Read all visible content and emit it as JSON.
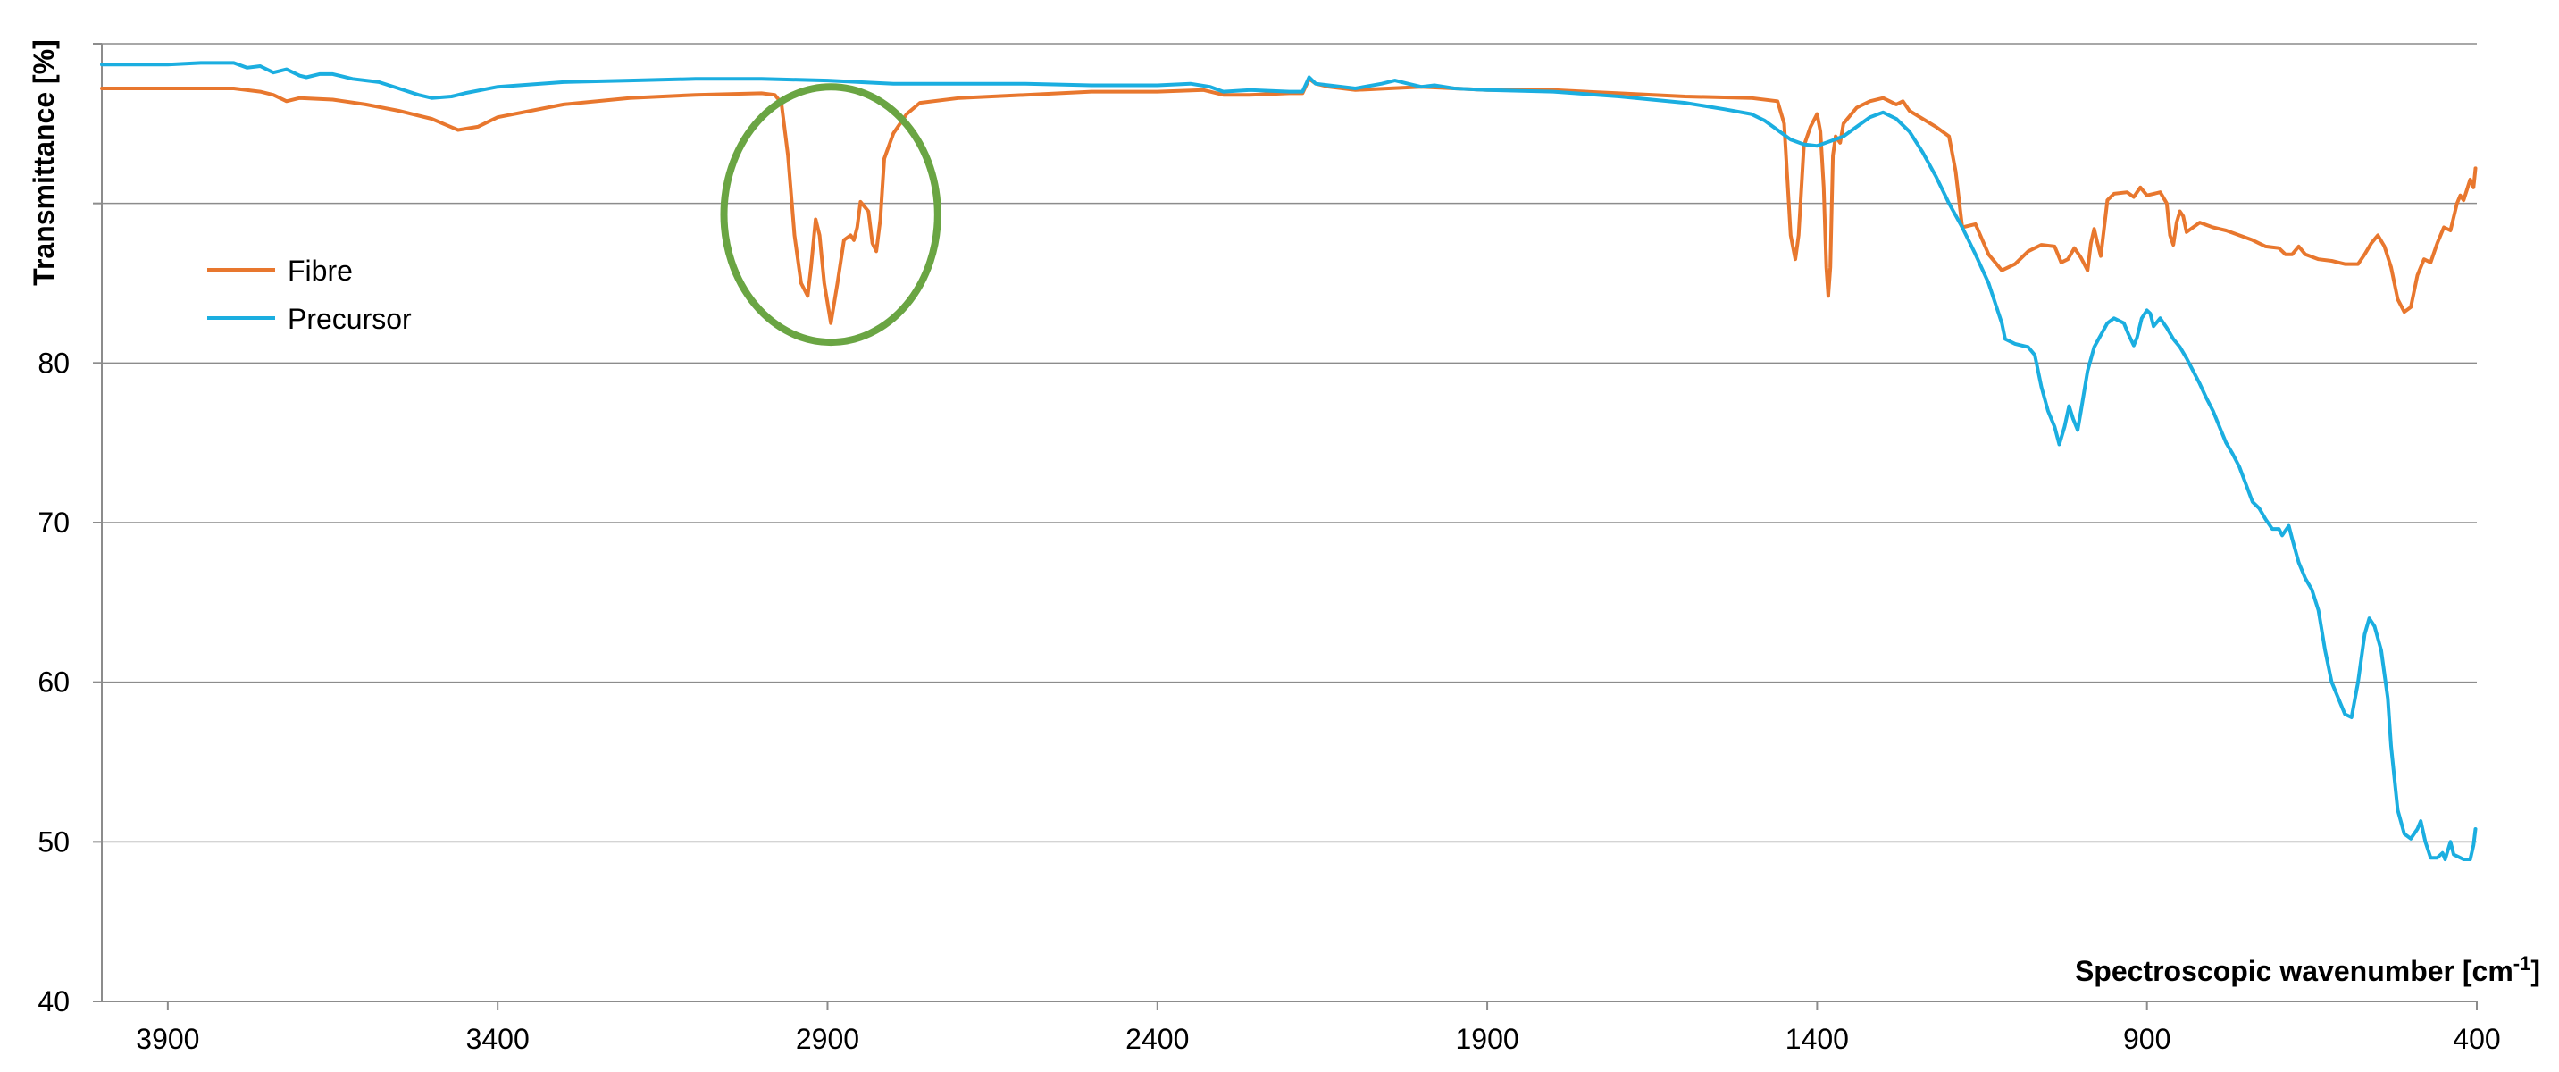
{
  "chart_data": {
    "type": "line",
    "title": "",
    "xlabel": "Spectroscopic wavenumber [cm",
    "xlabel_superscript": "-1",
    "xlabel_suffix": "]",
    "ylabel": "Transmittance [%]",
    "xlim": [
      4000,
      400
    ],
    "ylim": [
      40,
      100
    ],
    "x_reversed": true,
    "grid": true,
    "legend": "upper-left",
    "x_ticks": [
      3900,
      3400,
      2900,
      2400,
      1900,
      1400,
      900,
      400
    ],
    "y_ticks": [
      40,
      50,
      60,
      70,
      80
    ],
    "y_gridlines": [
      50,
      60,
      70,
      80,
      90,
      100
    ],
    "series": [
      {
        "name": "Fibre",
        "color": "#E8772E",
        "points": [
          [
            4000,
            97.2
          ],
          [
            3900,
            97.2
          ],
          [
            3800,
            97.2
          ],
          [
            3760,
            97.0
          ],
          [
            3740,
            96.8
          ],
          [
            3720,
            96.4
          ],
          [
            3700,
            96.6
          ],
          [
            3650,
            96.5
          ],
          [
            3600,
            96.2
          ],
          [
            3550,
            95.8
          ],
          [
            3500,
            95.3
          ],
          [
            3460,
            94.6
          ],
          [
            3430,
            94.8
          ],
          [
            3400,
            95.4
          ],
          [
            3300,
            96.2
          ],
          [
            3200,
            96.6
          ],
          [
            3100,
            96.8
          ],
          [
            3000,
            96.9
          ],
          [
            2980,
            96.8
          ],
          [
            2970,
            96.3
          ],
          [
            2960,
            93
          ],
          [
            2950,
            88
          ],
          [
            2940,
            85
          ],
          [
            2930,
            84.2
          ],
          [
            2925,
            86
          ],
          [
            2918,
            89.0
          ],
          [
            2912,
            88
          ],
          [
            2905,
            85
          ],
          [
            2895,
            82.5
          ],
          [
            2885,
            85
          ],
          [
            2875,
            87.7
          ],
          [
            2865,
            88.0
          ],
          [
            2860,
            87.7
          ],
          [
            2855,
            88.5
          ],
          [
            2850,
            90.1
          ],
          [
            2844,
            89.8
          ],
          [
            2838,
            89.5
          ],
          [
            2832,
            87.5
          ],
          [
            2826,
            87.0
          ],
          [
            2820,
            89
          ],
          [
            2814,
            92.8
          ],
          [
            2800,
            94.4
          ],
          [
            2780,
            95.6
          ],
          [
            2760,
            96.3
          ],
          [
            2700,
            96.6
          ],
          [
            2600,
            96.8
          ],
          [
            2500,
            97.0
          ],
          [
            2400,
            97.0
          ],
          [
            2330,
            97.1
          ],
          [
            2300,
            96.8
          ],
          [
            2260,
            96.8
          ],
          [
            2200,
            96.9
          ],
          [
            2180,
            96.9
          ],
          [
            2170,
            97.8
          ],
          [
            2160,
            97.5
          ],
          [
            2140,
            97.3
          ],
          [
            2100,
            97.1
          ],
          [
            2050,
            97.2
          ],
          [
            2000,
            97.3
          ],
          [
            1950,
            97.2
          ],
          [
            1900,
            97.1
          ],
          [
            1800,
            97.1
          ],
          [
            1700,
            96.9
          ],
          [
            1600,
            96.7
          ],
          [
            1500,
            96.6
          ],
          [
            1460,
            96.4
          ],
          [
            1450,
            95
          ],
          [
            1440,
            88
          ],
          [
            1433,
            86.5
          ],
          [
            1428,
            88
          ],
          [
            1420,
            93.6
          ],
          [
            1410,
            94.8
          ],
          [
            1400,
            95.6
          ],
          [
            1395,
            94.5
          ],
          [
            1390,
            91
          ],
          [
            1386,
            86
          ],
          [
            1383,
            84.2
          ],
          [
            1380,
            86
          ],
          [
            1376,
            93
          ],
          [
            1372,
            94.2
          ],
          [
            1365,
            93.8
          ],
          [
            1360,
            95
          ],
          [
            1340,
            96.0
          ],
          [
            1320,
            96.4
          ],
          [
            1300,
            96.6
          ],
          [
            1280,
            96.2
          ],
          [
            1270,
            96.4
          ],
          [
            1260,
            95.8
          ],
          [
            1240,
            95.3
          ],
          [
            1220,
            94.8
          ],
          [
            1200,
            94.2
          ],
          [
            1190,
            92
          ],
          [
            1180,
            88.5
          ],
          [
            1160,
            88.7
          ],
          [
            1140,
            86.8
          ],
          [
            1120,
            85.8
          ],
          [
            1100,
            86.2
          ],
          [
            1080,
            87.0
          ],
          [
            1060,
            87.4
          ],
          [
            1040,
            87.3
          ],
          [
            1030,
            86.3
          ],
          [
            1020,
            86.5
          ],
          [
            1010,
            87.2
          ],
          [
            1000,
            86.6
          ],
          [
            990,
            85.8
          ],
          [
            985,
            87.5
          ],
          [
            980,
            88.4
          ],
          [
            975,
            87.5
          ],
          [
            970,
            86.7
          ],
          [
            960,
            90.2
          ],
          [
            950,
            90.6
          ],
          [
            930,
            90.7
          ],
          [
            920,
            90.4
          ],
          [
            910,
            91.0
          ],
          [
            900,
            90.5
          ],
          [
            880,
            90.7
          ],
          [
            870,
            90.0
          ],
          [
            865,
            88
          ],
          [
            860,
            87.4
          ],
          [
            855,
            88.8
          ],
          [
            850,
            89.5
          ],
          [
            845,
            89.2
          ],
          [
            840,
            88.2
          ],
          [
            820,
            88.8
          ],
          [
            800,
            88.5
          ],
          [
            780,
            88.3
          ],
          [
            760,
            88.0
          ],
          [
            740,
            87.7
          ],
          [
            720,
            87.3
          ],
          [
            700,
            87.2
          ],
          [
            690,
            86.8
          ],
          [
            680,
            86.8
          ],
          [
            670,
            87.3
          ],
          [
            660,
            86.8
          ],
          [
            640,
            86.5
          ],
          [
            620,
            86.4
          ],
          [
            600,
            86.2
          ],
          [
            580,
            86.2
          ],
          [
            570,
            86.8
          ],
          [
            560,
            87.5
          ],
          [
            550,
            88.0
          ],
          [
            540,
            87.3
          ],
          [
            530,
            86
          ],
          [
            520,
            84
          ],
          [
            510,
            83.2
          ],
          [
            500,
            83.5
          ],
          [
            490,
            85.5
          ],
          [
            480,
            86.5
          ],
          [
            470,
            86.3
          ],
          [
            460,
            87.5
          ],
          [
            450,
            88.5
          ],
          [
            440,
            88.3
          ],
          [
            430,
            90
          ],
          [
            425,
            90.5
          ],
          [
            420,
            90.2
          ],
          [
            410,
            91.5
          ],
          [
            405,
            91.0
          ],
          [
            402,
            92.2
          ]
        ]
      },
      {
        "name": "Precursor",
        "color": "#1BAEE0",
        "points": [
          [
            4000,
            98.7
          ],
          [
            3900,
            98.7
          ],
          [
            3850,
            98.8
          ],
          [
            3800,
            98.8
          ],
          [
            3780,
            98.5
          ],
          [
            3760,
            98.6
          ],
          [
            3740,
            98.2
          ],
          [
            3720,
            98.4
          ],
          [
            3700,
            98.0
          ],
          [
            3690,
            97.9
          ],
          [
            3670,
            98.1
          ],
          [
            3650,
            98.1
          ],
          [
            3620,
            97.8
          ],
          [
            3580,
            97.6
          ],
          [
            3550,
            97.2
          ],
          [
            3520,
            96.8
          ],
          [
            3500,
            96.6
          ],
          [
            3470,
            96.7
          ],
          [
            3450,
            96.9
          ],
          [
            3400,
            97.3
          ],
          [
            3300,
            97.6
          ],
          [
            3200,
            97.7
          ],
          [
            3100,
            97.8
          ],
          [
            3000,
            97.8
          ],
          [
            2900,
            97.7
          ],
          [
            2800,
            97.5
          ],
          [
            2700,
            97.5
          ],
          [
            2600,
            97.5
          ],
          [
            2500,
            97.4
          ],
          [
            2400,
            97.4
          ],
          [
            2350,
            97.5
          ],
          [
            2320,
            97.3
          ],
          [
            2300,
            97.0
          ],
          [
            2260,
            97.1
          ],
          [
            2200,
            97.0
          ],
          [
            2180,
            97.0
          ],
          [
            2170,
            97.9
          ],
          [
            2160,
            97.5
          ],
          [
            2140,
            97.4
          ],
          [
            2100,
            97.2
          ],
          [
            2060,
            97.5
          ],
          [
            2040,
            97.7
          ],
          [
            2020,
            97.5
          ],
          [
            2000,
            97.3
          ],
          [
            1980,
            97.4
          ],
          [
            1950,
            97.2
          ],
          [
            1900,
            97.1
          ],
          [
            1800,
            97.0
          ],
          [
            1700,
            96.7
          ],
          [
            1600,
            96.3
          ],
          [
            1540,
            95.9
          ],
          [
            1500,
            95.6
          ],
          [
            1480,
            95.2
          ],
          [
            1460,
            94.6
          ],
          [
            1440,
            94.0
          ],
          [
            1420,
            93.7
          ],
          [
            1400,
            93.6
          ],
          [
            1380,
            93.9
          ],
          [
            1360,
            94.2
          ],
          [
            1340,
            94.8
          ],
          [
            1320,
            95.4
          ],
          [
            1300,
            95.7
          ],
          [
            1280,
            95.3
          ],
          [
            1260,
            94.5
          ],
          [
            1240,
            93.2
          ],
          [
            1220,
            91.7
          ],
          [
            1200,
            90.0
          ],
          [
            1180,
            88.5
          ],
          [
            1160,
            86.8
          ],
          [
            1140,
            85.0
          ],
          [
            1120,
            82.5
          ],
          [
            1115,
            81.5
          ],
          [
            1100,
            81.2
          ],
          [
            1080,
            81.0
          ],
          [
            1070,
            80.5
          ],
          [
            1060,
            78.5
          ],
          [
            1050,
            77
          ],
          [
            1040,
            76
          ],
          [
            1033,
            74.9
          ],
          [
            1025,
            76.0
          ],
          [
            1018,
            77.3
          ],
          [
            1012,
            76.5
          ],
          [
            1005,
            75.8
          ],
          [
            1000,
            77
          ],
          [
            990,
            79.5
          ],
          [
            980,
            81.0
          ],
          [
            960,
            82.5
          ],
          [
            950,
            82.8
          ],
          [
            935,
            82.5
          ],
          [
            928,
            81.8
          ],
          [
            920,
            81.1
          ],
          [
            915,
            81.6
          ],
          [
            908,
            82.8
          ],
          [
            900,
            83.3
          ],
          [
            895,
            83.1
          ],
          [
            890,
            82.3
          ],
          [
            880,
            82.8
          ],
          [
            870,
            82.2
          ],
          [
            860,
            81.5
          ],
          [
            850,
            81.0
          ],
          [
            840,
            80.3
          ],
          [
            830,
            79.5
          ],
          [
            820,
            78.7
          ],
          [
            810,
            77.8
          ],
          [
            800,
            77.0
          ],
          [
            790,
            76.0
          ],
          [
            780,
            75.0
          ],
          [
            770,
            74.3
          ],
          [
            760,
            73.5
          ],
          [
            750,
            72.4
          ],
          [
            740,
            71.3
          ],
          [
            730,
            70.9
          ],
          [
            720,
            70.2
          ],
          [
            710,
            69.6
          ],
          [
            700,
            69.6
          ],
          [
            695,
            69.2
          ],
          [
            690,
            69.5
          ],
          [
            685,
            69.8
          ],
          [
            680,
            69.0
          ],
          [
            670,
            67.5
          ],
          [
            660,
            66.5
          ],
          [
            650,
            65.8
          ],
          [
            640,
            64.5
          ],
          [
            630,
            62
          ],
          [
            620,
            60
          ],
          [
            610,
            59
          ],
          [
            600,
            58
          ],
          [
            590,
            57.8
          ],
          [
            580,
            60
          ],
          [
            570,
            63
          ],
          [
            563,
            64.0
          ],
          [
            555,
            63.5
          ],
          [
            545,
            62
          ],
          [
            535,
            59
          ],
          [
            530,
            56
          ],
          [
            520,
            52
          ],
          [
            510,
            50.5
          ],
          [
            500,
            50.2
          ],
          [
            490,
            50.8
          ],
          [
            485,
            51.3
          ],
          [
            478,
            50
          ],
          [
            470,
            49.0
          ],
          [
            460,
            49.0
          ],
          [
            452,
            49.3
          ],
          [
            448,
            48.9
          ],
          [
            440,
            50.0
          ],
          [
            435,
            49.2
          ],
          [
            420,
            48.9
          ],
          [
            410,
            48.9
          ],
          [
            405,
            49.8
          ],
          [
            402,
            50.8
          ]
        ]
      }
    ],
    "annotations": [
      {
        "type": "ellipse",
        "color": "#6AA543",
        "center": [
          2895,
          89.3
        ],
        "radius": [
          162,
          8.0
        ]
      }
    ]
  }
}
